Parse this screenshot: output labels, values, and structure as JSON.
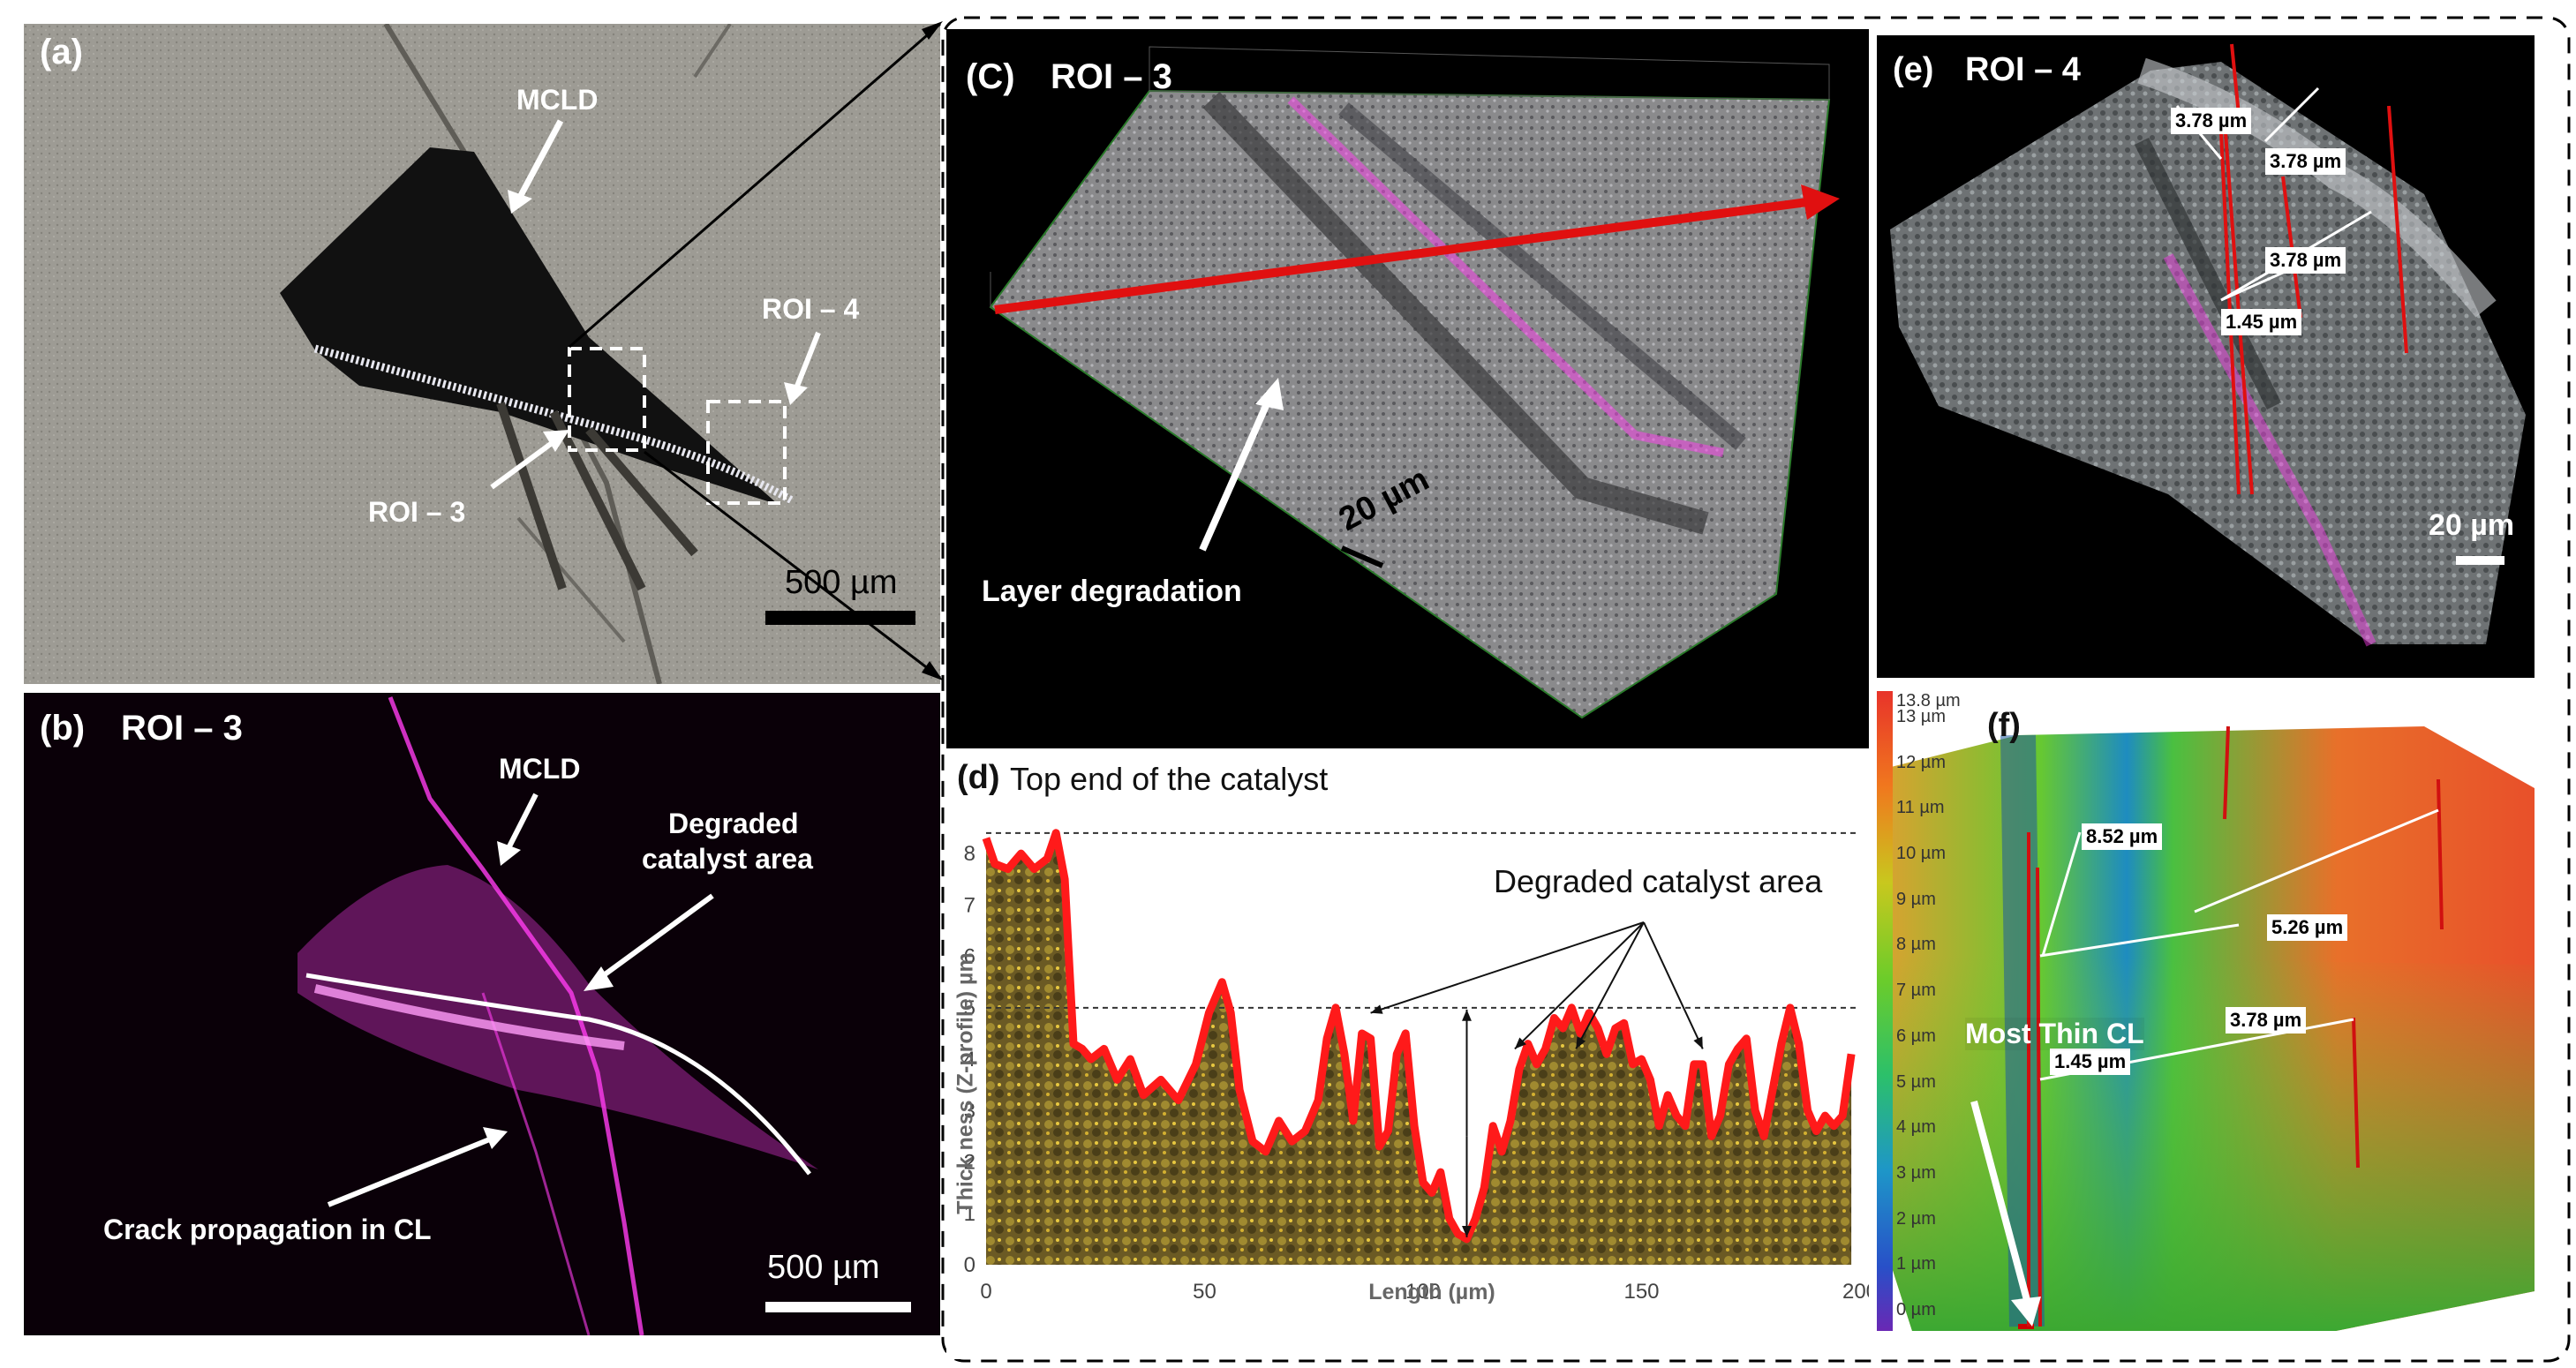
{
  "panel_a": {
    "label": "(a)",
    "mcld": "MCLD",
    "roi3": "ROI – 3",
    "roi4": "ROI – 4",
    "scale": "500 µm"
  },
  "panel_b": {
    "label": "(b)",
    "title": "ROI – 3",
    "mcld": "MCLD",
    "degraded_line1": "Degraded",
    "degraded_line2": "catalyst area",
    "crack": "Crack propagation in CL",
    "scale": "500 µm"
  },
  "panel_c": {
    "label": "(C)",
    "title": "ROI – 3",
    "scale": "20 µm",
    "layer": "Layer degradation"
  },
  "panel_d": {
    "label": "(d)",
    "top_label": "Top end of the catalyst",
    "degraded": "Degraded catalyst area",
    "chart_data": {
      "type": "area",
      "xlabel": "Length (µm)",
      "ylabel": "Thick ness (Z-profile) µm",
      "xlim": [
        0,
        200
      ],
      "ylim": [
        0,
        8.5
      ],
      "x_ticks": [
        0,
        50,
        100,
        150,
        200
      ],
      "y_ticks": [
        0,
        1,
        2,
        3,
        4,
        5,
        6,
        7,
        8
      ],
      "reference_lines": [
        8.4,
        5.0
      ],
      "x": [
        0,
        2,
        5,
        8,
        11,
        14,
        16,
        18,
        20,
        22,
        24,
        27,
        30,
        33,
        36,
        40,
        44,
        48,
        51,
        54,
        56,
        58,
        61,
        64,
        67,
        70,
        73,
        76,
        78,
        80,
        82,
        84,
        86,
        88,
        90,
        92,
        94,
        96,
        98,
        100,
        102,
        104,
        106,
        108,
        110,
        112,
        114,
        116,
        118,
        120,
        122,
        124,
        126,
        128,
        130,
        132,
        134,
        136,
        138,
        140,
        142,
        144,
        146,
        148,
        150,
        152,
        154,
        156,
        158,
        160,
        162,
        164,
        166,
        168,
        170,
        172,
        174,
        176,
        178,
        180,
        182,
        184,
        186,
        188,
        190,
        192,
        194,
        196,
        198
      ],
      "y": [
        8.3,
        7.8,
        7.7,
        8.0,
        7.7,
        7.9,
        8.4,
        7.5,
        4.3,
        4.2,
        4.0,
        4.2,
        3.6,
        4.0,
        3.3,
        3.6,
        3.2,
        3.9,
        4.9,
        5.5,
        4.9,
        3.4,
        2.4,
        2.2,
        2.8,
        2.4,
        2.6,
        3.2,
        4.4,
        5.0,
        4.1,
        2.8,
        4.5,
        4.4,
        2.3,
        2.6,
        4.1,
        4.5,
        2.7,
        1.6,
        1.4,
        1.8,
        0.9,
        0.6,
        0.5,
        0.9,
        1.5,
        2.7,
        2.2,
        2.8,
        3.8,
        4.3,
        3.9,
        4.2,
        4.8,
        4.6,
        5.0,
        4.5,
        4.9,
        4.6,
        4.1,
        4.6,
        4.7,
        3.9,
        4.0,
        3.6,
        2.7,
        3.3,
        2.9,
        2.7,
        3.9,
        3.9,
        2.5,
        2.9,
        3.9,
        4.2,
        4.4,
        3.0,
        2.5,
        3.4,
        4.3,
        5.0,
        4.3,
        3.0,
        2.6,
        2.9,
        2.7,
        2.9,
        4.1
      ]
    }
  },
  "panel_e": {
    "label": "(e)",
    "title": "ROI – 4",
    "m1": "3.78 µm",
    "m2": "3.78 µm",
    "m3": "3.78 µm",
    "m4": "1.45 µm",
    "scale": "20 µm"
  },
  "panel_f": {
    "label": "(f)",
    "colorbar_ticks": [
      "13.8 µm",
      "13 µm",
      "12 µm",
      "11 µm",
      "10 µm",
      "9 µm",
      "8 µm",
      "7 µm",
      "6 µm",
      "5 µm",
      "4 µm",
      "3 µm",
      "2 µm",
      "1 µm",
      "0 µm"
    ],
    "m1": "8.52 µm",
    "m2": "5.26 µm",
    "m3": "3.78 µm",
    "m4": "1.45 µm",
    "most_thin": "Most Thin CL"
  },
  "colors": {
    "magenta": "#ff3cf0",
    "red_arrow": "#e01010",
    "profile_red": "#ff1a1a",
    "catalyst_fill": "#6b5a24"
  }
}
